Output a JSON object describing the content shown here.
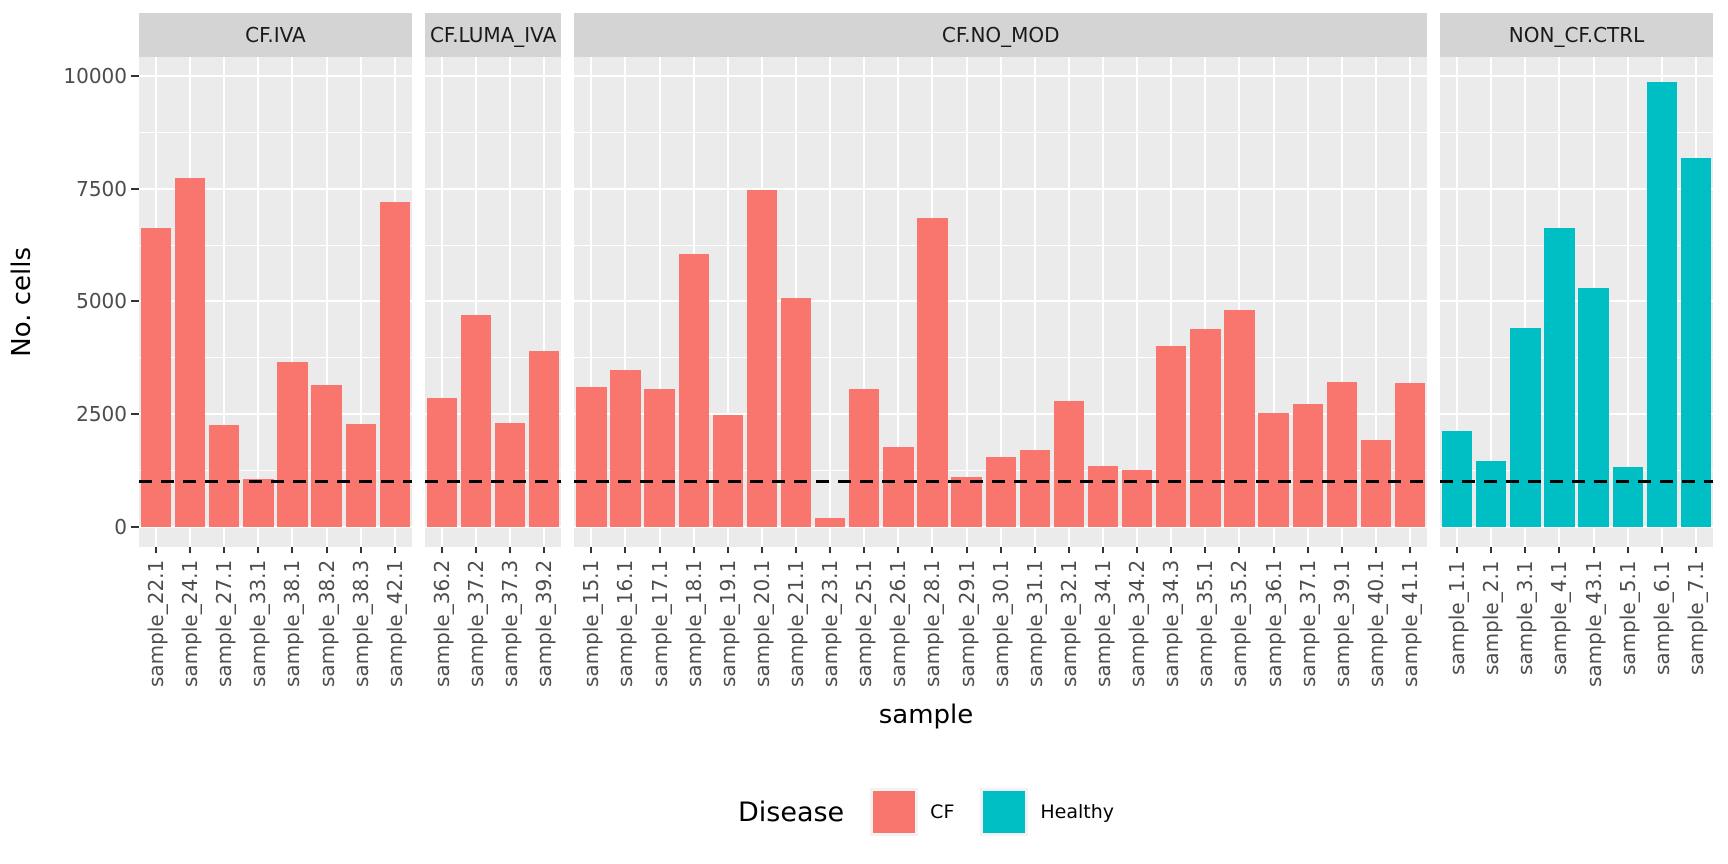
{
  "chart_data": {
    "type": "bar",
    "title": "",
    "xlabel": "sample",
    "ylabel": "No. cells",
    "ylim": [
      0,
      10000
    ],
    "yticks": [
      0,
      2500,
      5000,
      7500,
      10000
    ],
    "ytick_labels": [
      "0",
      "2500",
      "5000",
      "7500",
      "10000"
    ],
    "grid": "on",
    "threshold_line": {
      "value": 1000,
      "style": "dashed",
      "color": "#000000"
    },
    "legend": {
      "title": "Disease",
      "position": "bottom",
      "entries": [
        {
          "label": "CF",
          "color": "#F8766D"
        },
        {
          "label": "Healthy",
          "color": "#00BFC4"
        }
      ]
    },
    "facets": [
      {
        "label": "CF.IVA",
        "disease": "CF",
        "color": "#F8766D",
        "samples": [
          "sample_22.1",
          "sample_24.1",
          "sample_27.1",
          "sample_33.1",
          "sample_38.1",
          "sample_38.2",
          "sample_38.3",
          "sample_42.1"
        ],
        "values": [
          6620,
          7730,
          2250,
          1060,
          3660,
          3150,
          2280,
          7210
        ]
      },
      {
        "label": "CF.LUMA_IVA",
        "disease": "CF",
        "color": "#F8766D",
        "samples": [
          "sample_36.2",
          "sample_37.2",
          "sample_37.3",
          "sample_39.2"
        ],
        "values": [
          2860,
          4700,
          2300,
          3890
        ]
      },
      {
        "label": "CF.NO_MOD",
        "disease": "CF",
        "color": "#F8766D",
        "samples": [
          "sample_15.1",
          "sample_16.1",
          "sample_17.1",
          "sample_18.1",
          "sample_19.1",
          "sample_20.1",
          "sample_21.1",
          "sample_23.1",
          "sample_25.1",
          "sample_26.1",
          "sample_28.1",
          "sample_29.1",
          "sample_30.1",
          "sample_31.1",
          "sample_32.1",
          "sample_34.1",
          "sample_34.2",
          "sample_34.3",
          "sample_35.1",
          "sample_35.2",
          "sample_36.1",
          "sample_37.1",
          "sample_39.1",
          "sample_40.1",
          "sample_41.1"
        ],
        "values": [
          3110,
          3490,
          3050,
          6040,
          2480,
          7480,
          5080,
          190,
          3050,
          1780,
          6840,
          1110,
          1560,
          1710,
          2800,
          1350,
          1260,
          4010,
          4380,
          4820,
          2530,
          2730,
          3220,
          1930,
          3200
        ]
      },
      {
        "label": "NON_CF.CTRL",
        "disease": "Healthy",
        "color": "#00BFC4",
        "samples": [
          "sample_1.1",
          "sample_2.1",
          "sample_3.1",
          "sample_4.1",
          "sample_43.1",
          "sample_5.1",
          "sample_6.1",
          "sample_7.1"
        ],
        "values": [
          2130,
          1460,
          4420,
          6630,
          5300,
          1340,
          9870,
          8170
        ]
      }
    ],
    "colors": {
      "panel_background": "#EBEBEB",
      "strip_background": "#D4D4D4",
      "gridline": "#FFFFFF",
      "axis_text": "#4D4D4D",
      "cf": "#F8766D",
      "healthy": "#00BFC4"
    }
  }
}
